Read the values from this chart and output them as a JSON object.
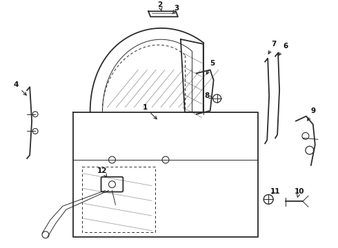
{
  "bg_color": "#ffffff",
  "line_color": "#2a2a2a",
  "label_color": "#111111",
  "lw_main": 1.3,
  "lw_thin": 0.7,
  "lw_thick": 1.8
}
